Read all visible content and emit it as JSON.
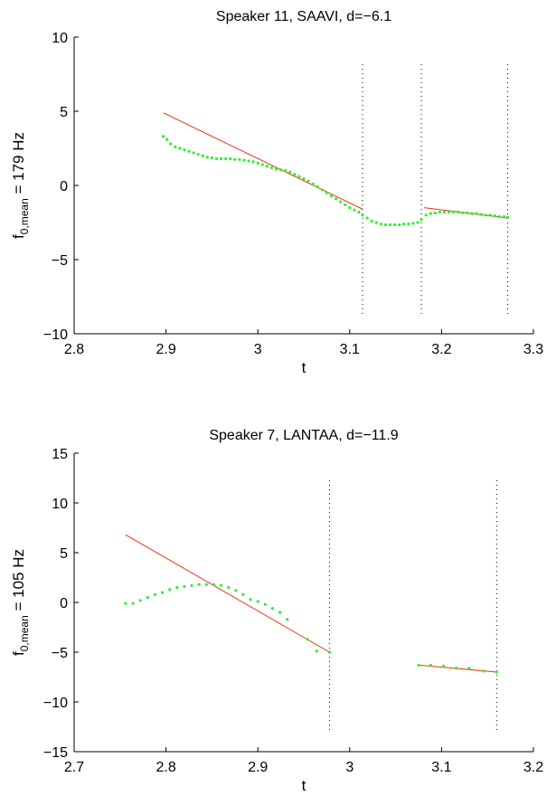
{
  "chart_data": [
    {
      "type": "line",
      "title": "Speaker 11, SAAVI, d=−6.1",
      "xlabel": "t",
      "ylabel_main": "f",
      "ylabel_sub": "0,mean",
      "ylabel_tail": " = 179 Hz",
      "xlim": [
        2.8,
        3.3
      ],
      "ylim": [
        -10,
        10
      ],
      "xticks": [
        2.8,
        2.9,
        3.0,
        3.1,
        3.2,
        3.3
      ],
      "xtick_labels": [
        "2.8",
        "2.9",
        "3",
        "3.1",
        "3.2",
        "3.3"
      ],
      "yticks": [
        -10,
        -5,
        0,
        5,
        10
      ],
      "ytick_labels": [
        "−10",
        "−5",
        "0",
        "5",
        "10"
      ],
      "grid": false,
      "boundaries": [
        3.114,
        3.178,
        3.272
      ],
      "fit_lines": [
        {
          "x": [
            2.897,
            3.114
          ],
          "y": [
            4.9,
            -1.6
          ]
        },
        {
          "x": [
            3.181,
            3.272
          ],
          "y": [
            -1.5,
            -2.2
          ]
        }
      ],
      "points": {
        "x": [
          2.897,
          2.901,
          2.905,
          2.91,
          2.915,
          2.92,
          2.925,
          2.93,
          2.935,
          2.94,
          2.945,
          2.95,
          2.955,
          2.96,
          2.965,
          2.97,
          2.975,
          2.98,
          2.985,
          2.99,
          2.995,
          3.0,
          3.005,
          3.01,
          3.015,
          3.02,
          3.025,
          3.03,
          3.035,
          3.04,
          3.045,
          3.05,
          3.055,
          3.06,
          3.065,
          3.07,
          3.075,
          3.08,
          3.085,
          3.09,
          3.095,
          3.1,
          3.105,
          3.11,
          3.114,
          3.119,
          3.124,
          3.129,
          3.134,
          3.139,
          3.144,
          3.149,
          3.154,
          3.159,
          3.164,
          3.169,
          3.174,
          3.178,
          3.183,
          3.188,
          3.193,
          3.198,
          3.203,
          3.208,
          3.213,
          3.218,
          3.223,
          3.228,
          3.233,
          3.238,
          3.243,
          3.248,
          3.253,
          3.258,
          3.263,
          3.268,
          3.272
        ],
        "y": [
          3.3,
          3.1,
          2.8,
          2.6,
          2.5,
          2.4,
          2.3,
          2.2,
          2.1,
          2.0,
          1.9,
          1.85,
          1.8,
          1.8,
          1.8,
          1.8,
          1.75,
          1.75,
          1.7,
          1.65,
          1.6,
          1.5,
          1.4,
          1.3,
          1.2,
          1.1,
          1.05,
          1.0,
          0.9,
          0.75,
          0.6,
          0.45,
          0.3,
          0.1,
          -0.1,
          -0.3,
          -0.5,
          -0.7,
          -0.9,
          -1.1,
          -1.3,
          -1.5,
          -1.65,
          -1.8,
          -2.0,
          -2.2,
          -2.4,
          -2.5,
          -2.6,
          -2.65,
          -2.65,
          -2.65,
          -2.65,
          -2.6,
          -2.6,
          -2.55,
          -2.5,
          -2.3,
          -2.0,
          -1.9,
          -1.85,
          -1.8,
          -1.8,
          -1.8,
          -1.8,
          -1.8,
          -1.85,
          -1.85,
          -1.9,
          -1.9,
          -1.95,
          -2.0,
          -2.0,
          -2.05,
          -2.1,
          -2.1,
          -2.15
        ]
      },
      "colors": {
        "points": "#33ee33",
        "fit": "#ee3311",
        "boundary": "#000000"
      }
    },
    {
      "type": "line",
      "title": "Speaker 7, LANTAA, d=−11.9",
      "xlabel": "t",
      "ylabel_main": "f",
      "ylabel_sub": "0,mean",
      "ylabel_tail": " = 105 Hz",
      "xlim": [
        2.7,
        3.2
      ],
      "ylim": [
        -15,
        15
      ],
      "xticks": [
        2.7,
        2.8,
        2.9,
        3.0,
        3.1,
        3.2
      ],
      "xtick_labels": [
        "2.7",
        "2.8",
        "2.9",
        "3",
        "3.1",
        "3.2"
      ],
      "yticks": [
        -15,
        -10,
        -5,
        0,
        5,
        10,
        15
      ],
      "ytick_labels": [
        "−15",
        "−10",
        "−5",
        "0",
        "5",
        "10",
        "15"
      ],
      "grid": false,
      "boundaries": [
        2.978,
        3.16
      ],
      "fit_lines": [
        {
          "x": [
            2.756,
            2.978
          ],
          "y": [
            6.8,
            -5.0
          ]
        },
        {
          "x": [
            3.075,
            3.16
          ],
          "y": [
            -6.3,
            -7.0
          ]
        }
      ],
      "points": {
        "x": [
          2.756,
          2.764,
          2.772,
          2.78,
          2.788,
          2.796,
          2.804,
          2.812,
          2.82,
          2.828,
          2.836,
          2.844,
          2.852,
          2.86,
          2.868,
          2.876,
          2.884,
          2.892,
          2.9,
          2.908,
          2.916,
          2.924,
          2.932,
          2.954,
          2.964,
          2.978,
          3.075,
          3.088,
          3.102,
          3.116,
          3.13,
          3.146,
          3.16
        ],
        "y": [
          -0.1,
          -0.1,
          0.2,
          0.5,
          0.8,
          1.0,
          1.3,
          1.5,
          1.6,
          1.7,
          1.8,
          1.8,
          1.8,
          1.7,
          1.5,
          1.2,
          0.8,
          0.3,
          0.1,
          -0.2,
          -0.6,
          -1.0,
          -1.7,
          -3.7,
          -4.9,
          -5.0,
          -6.3,
          -6.3,
          -6.4,
          -6.6,
          -6.6,
          -6.9,
          -7.0
        ]
      },
      "colors": {
        "points": "#33ee33",
        "fit": "#ee3311",
        "boundary": "#000000"
      }
    }
  ]
}
